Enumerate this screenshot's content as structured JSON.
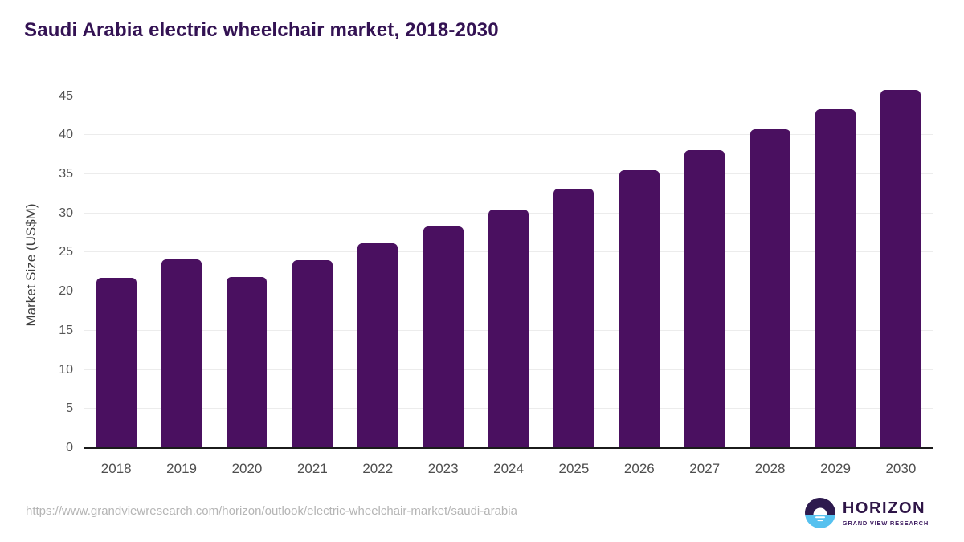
{
  "header": {
    "title": "Saudi Arabia electric wheelchair market, 2018-2030"
  },
  "chart_data": {
    "type": "bar",
    "title": "Saudi Arabia electric wheelchair market, 2018-2030",
    "categories": [
      "2018",
      "2019",
      "2020",
      "2021",
      "2022",
      "2023",
      "2024",
      "2025",
      "2026",
      "2027",
      "2028",
      "2029",
      "2030"
    ],
    "values": [
      21.8,
      24.1,
      21.9,
      24.0,
      26.2,
      28.3,
      30.5,
      33.1,
      35.5,
      38.1,
      40.7,
      43.3,
      45.8
    ],
    "xlabel": "",
    "ylabel": "Market Size (US$M)",
    "ylim": [
      0,
      47
    ],
    "yticks": [
      0,
      5,
      10,
      15,
      20,
      25,
      30,
      35,
      40,
      45
    ],
    "grid": "horizontal",
    "legend": "none",
    "bar_color": "#4a1060"
  },
  "footer": {
    "source_url": "https://www.grandviewresearch.com/horizon/outlook/electric-wheelchair-market/saudi-arabia",
    "logo": {
      "name": "HORIZON",
      "subtitle": "GRAND VIEW RESEARCH"
    }
  },
  "colors": {
    "title_text": "#331253",
    "bar": "#4a1060",
    "gridline": "#ececec",
    "axis_line": "#1b1b1b",
    "tick_label": "#565656",
    "url_text": "#b5b5b5",
    "logo_purple": "#2d1a4e",
    "logo_blue": "#56c1ef"
  }
}
